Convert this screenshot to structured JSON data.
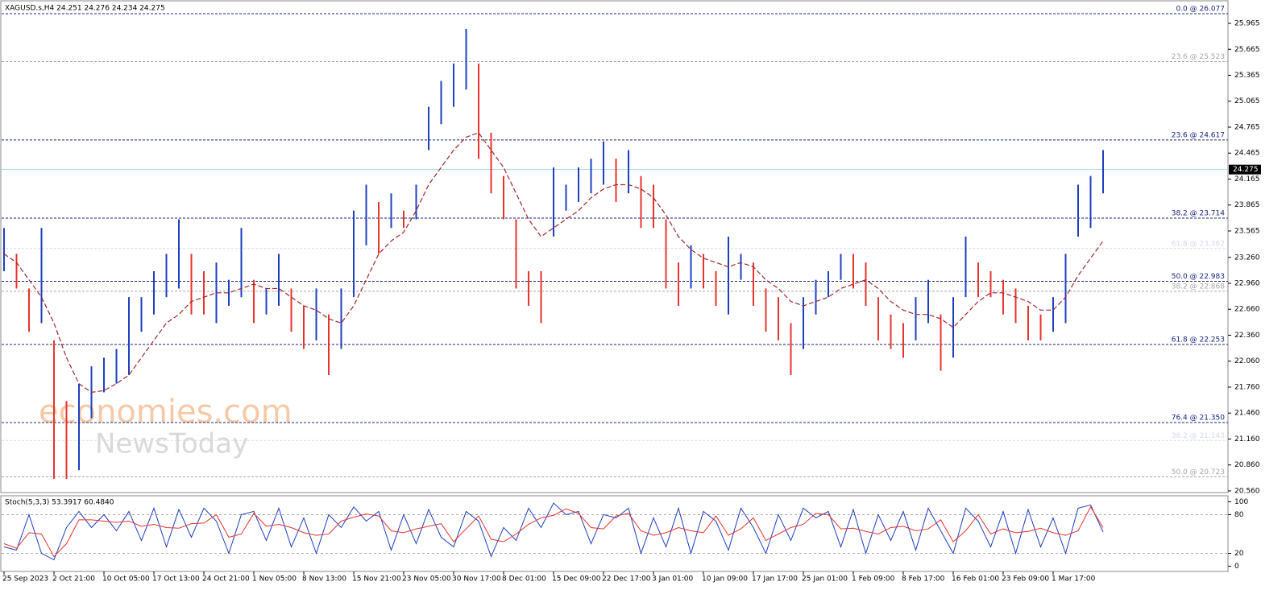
{
  "chart_data": [
    {
      "type": "ohlc",
      "title": "XAGUSD.s,H4  24.251 24.276 24.234 24.275",
      "watermark": [
        "economies.com",
        "NewsToday"
      ],
      "categories": [
        "25 Sep 2023",
        null,
        null,
        null,
        "2 Oct 21:00",
        null,
        null,
        null,
        "10 Oct 05:00",
        null,
        null,
        null,
        "17 Oct 13:00",
        null,
        null,
        null,
        "24 Oct 21:00",
        null,
        null,
        null,
        "1 Nov 05:00",
        null,
        null,
        null,
        "8 Nov 13:00",
        null,
        null,
        null,
        "15 Nov 21:00",
        null,
        null,
        null,
        "23 Nov 05:00",
        null,
        null,
        null,
        "30 Nov 17:00",
        null,
        null,
        null,
        "8 Dec 01:00",
        null,
        null,
        null,
        "15 Dec 09:00",
        null,
        null,
        null,
        "22 Dec 17:00",
        null,
        null,
        null,
        "3 Jan 01:00",
        null,
        null,
        null,
        "10 Jan 09:00",
        null,
        null,
        null,
        "17 Jan 17:00",
        null,
        null,
        null,
        "25 Jan 01:00",
        null,
        null,
        null,
        "1 Feb 09:00",
        null,
        null,
        null,
        "8 Feb 17:00",
        null,
        null,
        null,
        "16 Feb 01:00",
        null,
        null,
        null,
        "23 Feb 09:00",
        null,
        null,
        null,
        "1 Mar 17:00",
        null,
        null,
        null,
        null
      ],
      "high": [
        23.6,
        23.3,
        22.9,
        23.6,
        22.3,
        21.6,
        21.8,
        22.0,
        22.1,
        22.2,
        22.8,
        22.8,
        23.1,
        23.3,
        23.7,
        23.3,
        23.1,
        23.2,
        23.0,
        23.6,
        23.0,
        22.9,
        23.3,
        22.9,
        22.7,
        22.9,
        22.6,
        22.9,
        23.8,
        24.1,
        23.9,
        24.0,
        23.8,
        24.1,
        25.0,
        25.3,
        25.5,
        25.9,
        25.5,
        24.7,
        24.2,
        23.7,
        23.1,
        23.1,
        24.3,
        24.1,
        24.3,
        24.4,
        24.6,
        24.4,
        24.5,
        24.2,
        24.1,
        23.7,
        23.2,
        23.4,
        23.3,
        23.1,
        23.5,
        23.3,
        23.2,
        22.9,
        22.8,
        22.5,
        22.8,
        23.0,
        23.1,
        23.3,
        23.3,
        23.2,
        22.8,
        22.6,
        22.5,
        22.8,
        23.0,
        22.6,
        22.8,
        23.5,
        23.2,
        23.1,
        23.0,
        22.9,
        22.7,
        22.6,
        22.8,
        23.3,
        24.1,
        24.2,
        24.5
      ],
      "low": [
        23.1,
        22.9,
        22.4,
        22.5,
        20.7,
        20.7,
        20.8,
        21.4,
        21.7,
        21.8,
        21.9,
        22.4,
        22.6,
        22.8,
        22.9,
        22.6,
        22.6,
        22.5,
        22.7,
        22.8,
        22.5,
        22.6,
        22.7,
        22.4,
        22.2,
        22.3,
        21.9,
        22.2,
        22.8,
        23.4,
        23.3,
        23.6,
        23.6,
        23.7,
        24.5,
        24.8,
        25.0,
        25.2,
        24.4,
        24.0,
        23.7,
        22.9,
        22.7,
        22.5,
        23.5,
        23.8,
        23.9,
        24.0,
        24.1,
        23.9,
        24.0,
        23.6,
        23.6,
        22.9,
        22.7,
        22.9,
        22.9,
        22.7,
        22.6,
        23.0,
        22.7,
        22.4,
        22.3,
        21.9,
        22.2,
        22.6,
        22.8,
        23.0,
        22.9,
        22.7,
        22.3,
        22.2,
        22.1,
        22.3,
        22.5,
        21.95,
        22.1,
        22.8,
        22.8,
        22.8,
        22.6,
        22.5,
        22.3,
        22.3,
        22.4,
        22.5,
        23.5,
        23.6,
        24.0
      ],
      "ma": [
        23.3,
        23.2,
        23.0,
        22.8,
        22.5,
        22.1,
        21.8,
        21.7,
        21.72,
        21.8,
        21.9,
        22.1,
        22.3,
        22.5,
        22.6,
        22.75,
        22.8,
        22.85,
        22.85,
        22.9,
        22.95,
        22.9,
        22.9,
        22.8,
        22.7,
        22.65,
        22.55,
        22.5,
        22.7,
        23.0,
        23.3,
        23.45,
        23.55,
        23.8,
        24.1,
        24.3,
        24.5,
        24.65,
        24.7,
        24.5,
        24.3,
        24.0,
        23.7,
        23.5,
        23.6,
        23.7,
        23.8,
        23.95,
        24.05,
        24.1,
        24.1,
        24.05,
        23.95,
        23.75,
        23.5,
        23.35,
        23.25,
        23.2,
        23.15,
        23.2,
        23.15,
        23.0,
        22.9,
        22.75,
        22.7,
        22.75,
        22.8,
        22.9,
        22.95,
        23.0,
        22.9,
        22.75,
        22.65,
        22.6,
        22.6,
        22.55,
        22.45,
        22.6,
        22.75,
        22.85,
        22.85,
        22.8,
        22.75,
        22.65,
        22.65,
        22.8,
        23.05,
        23.25,
        23.45
      ],
      "up_color": "#1f3fbf",
      "down_color": "#e8332c",
      "ma_color": "#a0282d",
      "current_price": 24.275,
      "current_color": "#a9d8e8",
      "fib_levels": [
        {
          "value": 26.077,
          "label": "0.0 @ 26.077",
          "color": "#1a237e"
        },
        {
          "value": 25.523,
          "label": "23.6 @ 25.523",
          "color": "#a8a8a8"
        },
        {
          "value": 24.617,
          "label": "23.6 @ 24.617",
          "color": "#1a237e"
        },
        {
          "value": 23.714,
          "label": "38.2 @ 23.714",
          "color": "#1a237e"
        },
        {
          "value": 23.362,
          "label": "61.8 @ 23.362",
          "color": "#d6dbea"
        },
        {
          "value": 22.983,
          "label": "50.0 @ 22.983",
          "color": "#1a237e"
        },
        {
          "value": 22.868,
          "label": "38.2 @ 22.868",
          "color": "#a8a8a8"
        },
        {
          "value": 22.253,
          "label": "61.8 @ 22.253",
          "color": "#1a237e"
        },
        {
          "value": 21.35,
          "label": "76.4 @ 21.350",
          "color": "#1a237e"
        },
        {
          "value": 21.143,
          "label": "38.2 @ 21.143",
          "color": "#d6dbea"
        },
        {
          "value": 20.723,
          "label": "50.0 @ 20.723",
          "color": "#a8a8a8"
        }
      ],
      "ylim": [
        20.541,
        26.207
      ],
      "yticks": [
        25.965,
        25.665,
        25.365,
        25.065,
        24.765,
        24.465,
        24.165,
        23.865,
        23.565,
        {
          "value": 23.26,
          "label": "23.260"
        },
        {
          "value": 22.96,
          "label": "22.960"
        },
        {
          "value": 22.66,
          "label": "22.660"
        },
        {
          "value": 22.36,
          "label": "22.360"
        },
        {
          "value": 22.06,
          "label": "22.060"
        },
        {
          "value": 21.76,
          "label": "21.760"
        },
        {
          "value": 21.46,
          "label": "21.460"
        },
        {
          "value": 21.16,
          "label": "21.160"
        },
        {
          "value": 20.86,
          "label": "20.860"
        },
        {
          "value": 20.56,
          "label": "20.560"
        }
      ]
    },
    {
      "type": "line",
      "title": "Stoch(5,3,3) 53.3917 60.4840",
      "series": [
        {
          "color": "#1f3fbf",
          "values": [
            30,
            25,
            80,
            20,
            10,
            60,
            85,
            60,
            80,
            55,
            85,
            40,
            90,
            30,
            88,
            45,
            90,
            70,
            20,
            80,
            85,
            40,
            90,
            30,
            75,
            20,
            80,
            60,
            92,
            70,
            85,
            25,
            80,
            35,
            88,
            45,
            30,
            85,
            70,
            15,
            60,
            40,
            90,
            60,
            98,
            80,
            85,
            35,
            80,
            75,
            90,
            20,
            75,
            30,
            90,
            20,
            85,
            70,
            25,
            90,
            60,
            20,
            80,
            40,
            90,
            75,
            85,
            30,
            88,
            20,
            80,
            40,
            85,
            25,
            90,
            55,
            20,
            90,
            70,
            30,
            85,
            20,
            88,
            30,
            75,
            20,
            90,
            95,
            53
          ]
        },
        {
          "color": "#e8332c",
          "values": [
            35,
            28,
            52,
            50,
            15,
            35,
            72,
            72,
            70,
            68,
            70,
            62,
            65,
            60,
            59,
            66,
            67,
            80,
            45,
            50,
            82,
            62,
            65,
            60,
            52,
            48,
            50,
            70,
            76,
            81,
            78,
            55,
            52,
            58,
            62,
            66,
            38,
            58,
            78,
            42,
            38,
            50,
            65,
            75,
            79,
            89,
            82,
            60,
            58,
            78,
            82,
            55,
            48,
            52,
            60,
            55,
            52,
            78,
            48,
            58,
            75,
            40,
            50,
            60,
            65,
            82,
            80,
            58,
            59,
            54,
            50,
            60,
            62,
            55,
            58,
            72,
            38,
            55,
            80,
            50,
            58,
            52,
            54,
            59,
            52,
            48,
            55,
            92,
            60
          ]
        }
      ],
      "levels": [
        80,
        20
      ],
      "ylim": [
        -8,
        108
      ],
      "yticks": [
        100,
        80,
        20,
        0
      ]
    }
  ]
}
